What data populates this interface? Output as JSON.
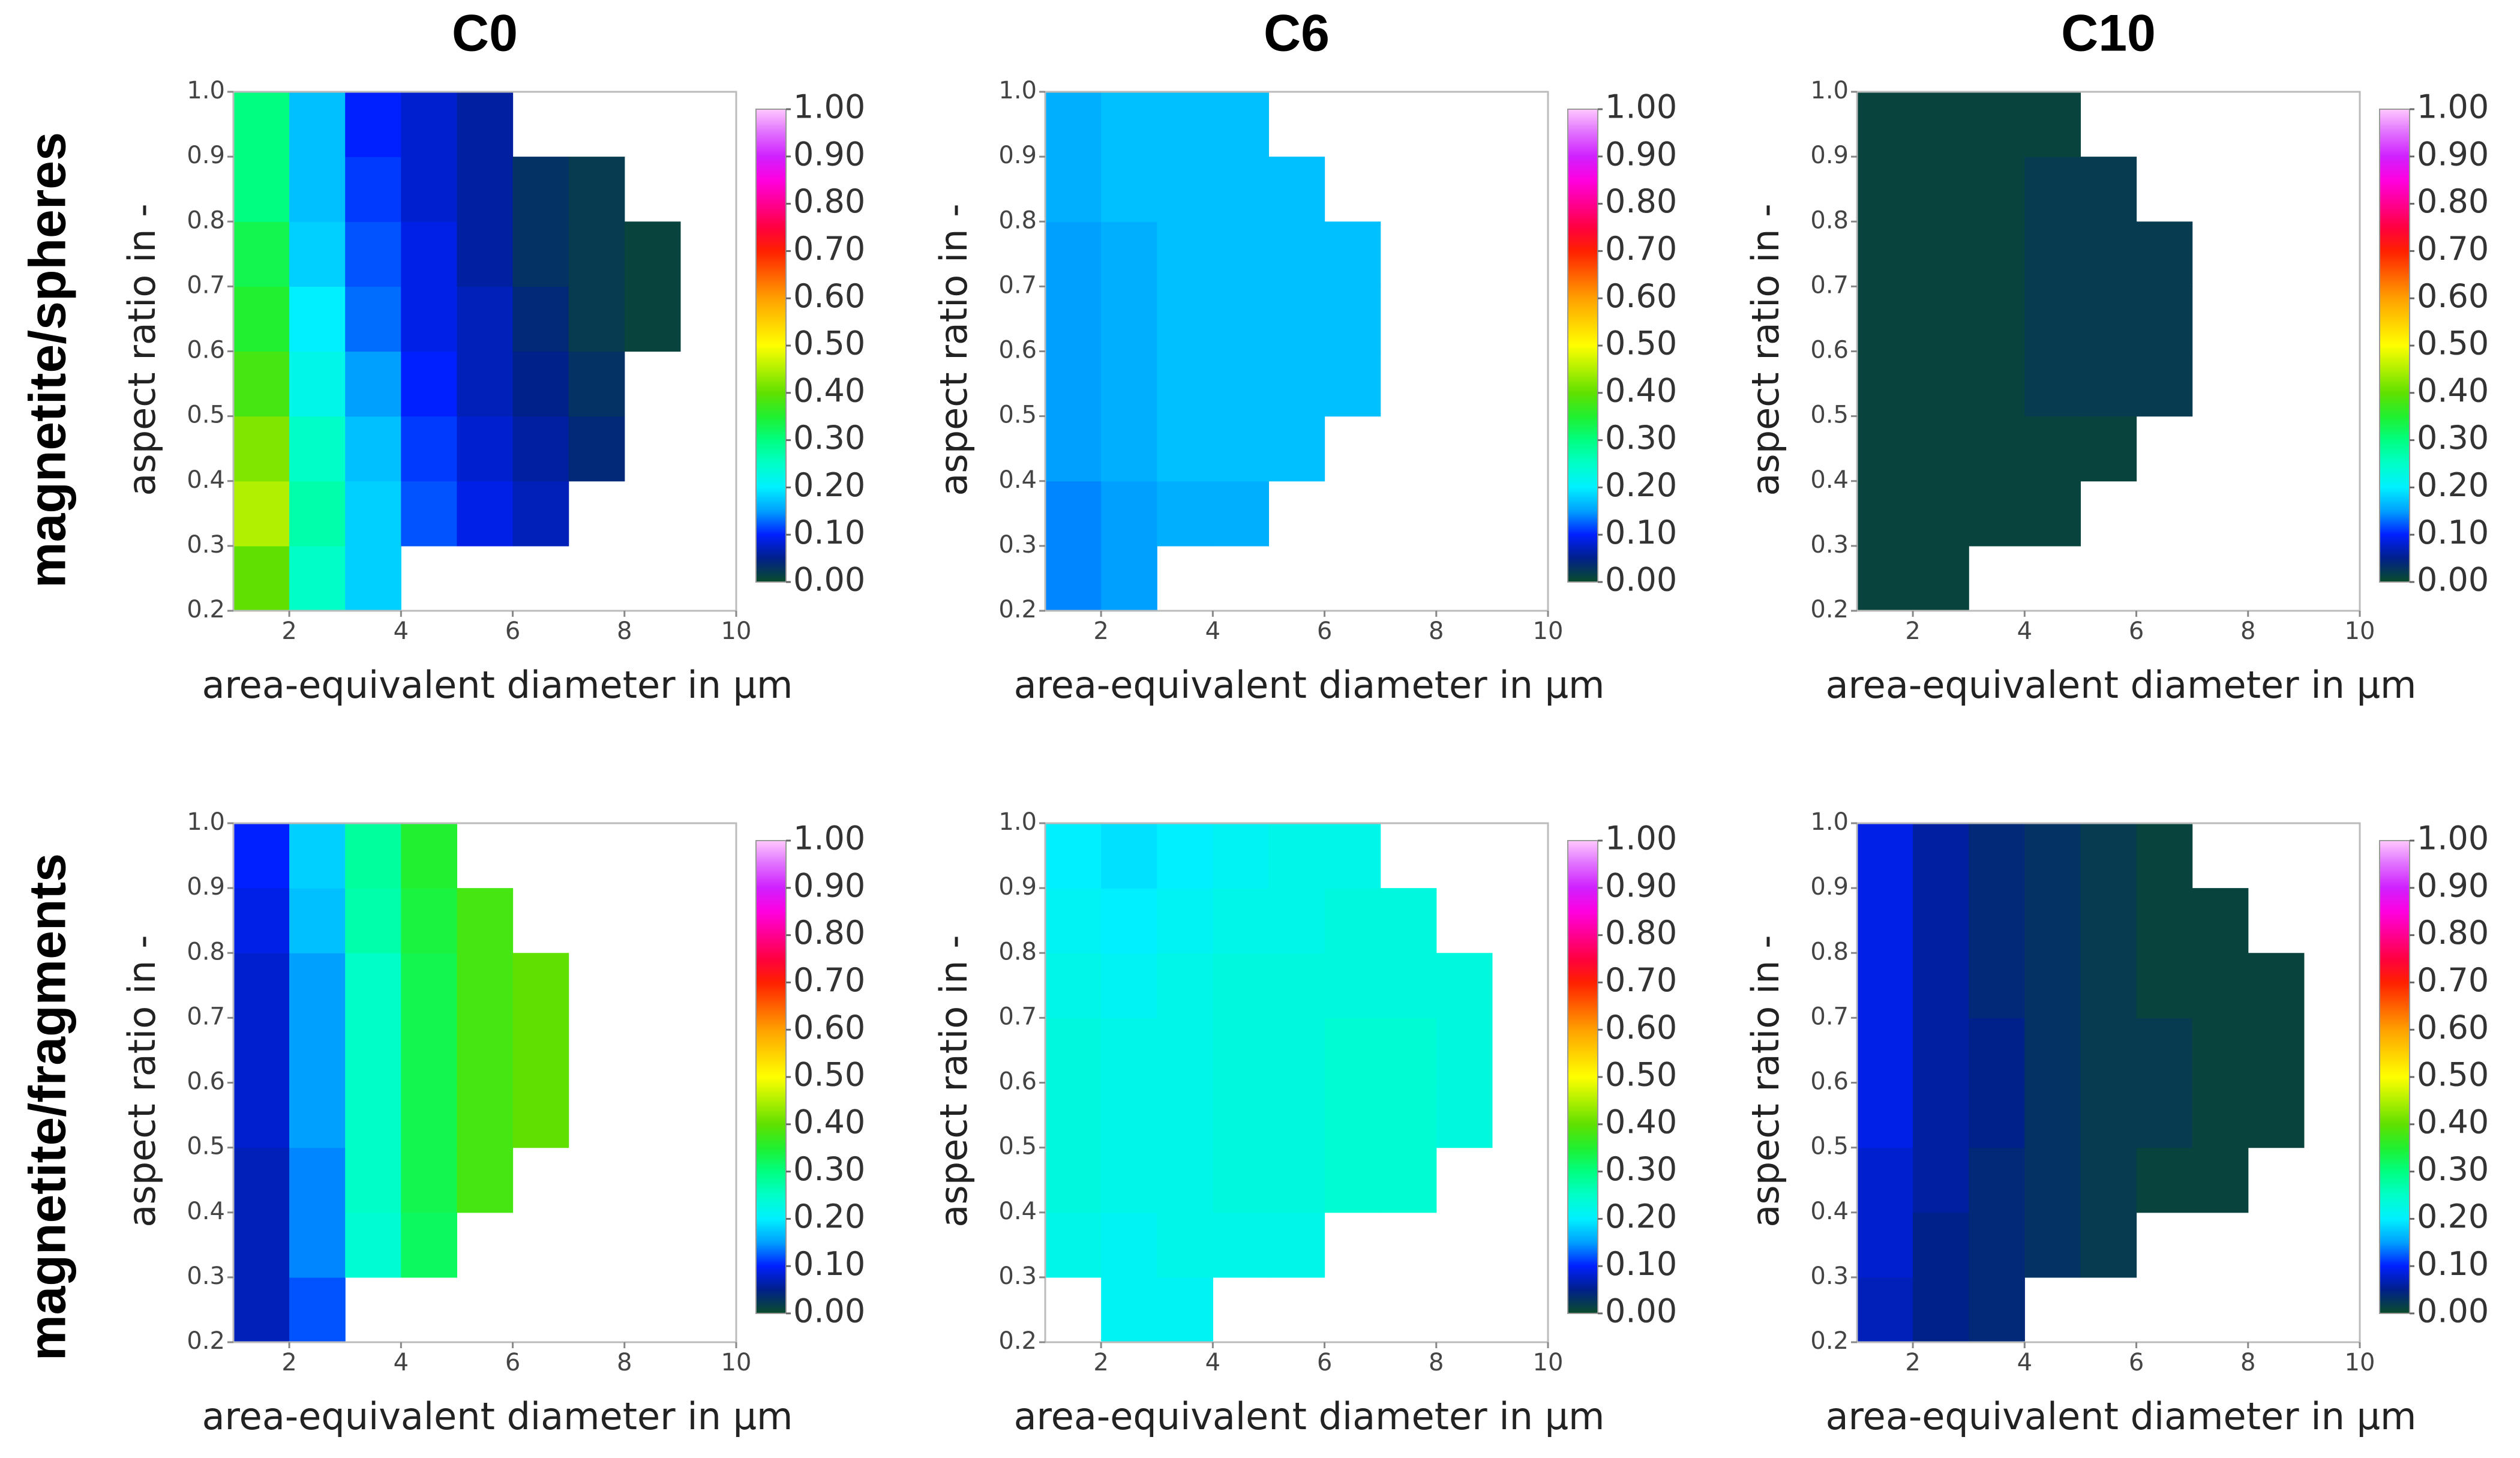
{
  "columns": [
    "C0",
    "C6",
    "C10"
  ],
  "rows": [
    "magnetite/spheres",
    "magnetite/fragments"
  ],
  "colormap": [
    "#0a4d2a",
    "#00208a",
    "#0020ff",
    "#00a0ff",
    "#00f0ff",
    "#00ffc8",
    "#00ff80",
    "#20f030",
    "#60e000",
    "#b0f000",
    "#ffff00",
    "#ffd000",
    "#ffa000",
    "#ff6000",
    "#ff2000",
    "#ff0040",
    "#ff0090",
    "#ff00e0",
    "#d020ff",
    "#e070ff",
    "#ffc8ff"
  ],
  "chart_data": [
    {
      "type": "heatmap",
      "x_label": "area-equivalent diameter in µm",
      "y_label": "aspect ratio in -",
      "x": [
        1.5,
        2.5,
        3.5,
        4.5,
        5.5,
        6.5,
        7.5,
        8.5,
        9.5
      ],
      "y": [
        0.25,
        0.35,
        0.45,
        0.55,
        0.65,
        0.75,
        0.85,
        0.95
      ],
      "z": [
        [
          0.4,
          0.25,
          0.18,
          null,
          null,
          null,
          null,
          null,
          null
        ],
        [
          0.45,
          0.27,
          0.18,
          0.12,
          0.09,
          0.07,
          null,
          null,
          null
        ],
        [
          0.42,
          0.25,
          0.17,
          0.11,
          0.08,
          0.06,
          0.04,
          null,
          null
        ],
        [
          0.38,
          0.22,
          0.15,
          0.1,
          0.07,
          0.05,
          0.03,
          null,
          null
        ],
        [
          0.35,
          0.2,
          0.13,
          0.09,
          0.07,
          0.04,
          0.02,
          0.01,
          null
        ],
        [
          0.33,
          0.18,
          0.12,
          0.09,
          0.06,
          0.03,
          0.02,
          0.01,
          null
        ],
        [
          0.3,
          0.17,
          0.11,
          0.08,
          0.06,
          0.03,
          0.02,
          null,
          null
        ],
        [
          0.3,
          0.17,
          0.1,
          0.08,
          0.06,
          null,
          null,
          null,
          null
        ]
      ],
      "xlim": [
        1,
        10
      ],
      "ylim": [
        0.2,
        1
      ],
      "xticks": [
        2,
        4,
        6,
        8,
        10
      ],
      "yticks": [
        0.2,
        0.3,
        0.4,
        0.5,
        0.6,
        0.7,
        0.8,
        0.9,
        {
          "value": 1,
          "label": "1.0"
        }
      ],
      "clim": [
        0,
        1
      ],
      "cticks": [
        {
          "value": 0,
          "label": "0.00"
        },
        {
          "value": 0.1,
          "label": "0.10"
        },
        {
          "value": 0.2,
          "label": "0.20"
        },
        {
          "value": 0.3,
          "label": "0.30"
        },
        {
          "value": 0.4,
          "label": "0.40"
        },
        {
          "value": 0.5,
          "label": "0.50"
        },
        {
          "value": 0.6,
          "label": "0.60"
        },
        {
          "value": 0.7,
          "label": "0.70"
        },
        {
          "value": 0.8,
          "label": "0.80"
        },
        {
          "value": 0.9,
          "label": "0.90"
        },
        {
          "value": 1,
          "label": "1.00"
        }
      ]
    },
    {
      "type": "heatmap",
      "x_label": "area-equivalent diameter in µm",
      "y_label": "aspect ratio in -",
      "x": [
        1.5,
        2.5,
        3.5,
        4.5,
        5.5,
        6.5,
        7.5,
        8.5,
        9.5
      ],
      "y": [
        0.25,
        0.35,
        0.45,
        0.55,
        0.65,
        0.75,
        0.85,
        0.95
      ],
      "z": [
        [
          0.14,
          0.15,
          null,
          null,
          null,
          null,
          null,
          null,
          null
        ],
        [
          0.14,
          0.15,
          0.16,
          0.16,
          null,
          null,
          null,
          null,
          null
        ],
        [
          0.15,
          0.16,
          0.17,
          0.17,
          0.17,
          null,
          null,
          null,
          null
        ],
        [
          0.15,
          0.16,
          0.17,
          0.17,
          0.17,
          0.17,
          null,
          null,
          null
        ],
        [
          0.15,
          0.16,
          0.17,
          0.17,
          0.17,
          0.17,
          null,
          null,
          null
        ],
        [
          0.15,
          0.16,
          0.17,
          0.17,
          0.17,
          0.17,
          null,
          null,
          null
        ],
        [
          0.16,
          0.17,
          0.17,
          0.17,
          0.17,
          null,
          null,
          null,
          null
        ],
        [
          0.16,
          0.17,
          0.17,
          0.17,
          null,
          null,
          null,
          null,
          null
        ]
      ],
      "xlim": [
        1,
        10
      ],
      "ylim": [
        0.2,
        1
      ],
      "xticks": [
        2,
        4,
        6,
        8,
        10
      ],
      "yticks": [
        0.2,
        0.3,
        0.4,
        0.5,
        0.6,
        0.7,
        0.8,
        0.9,
        {
          "value": 1,
          "label": "1.0"
        }
      ],
      "clim": [
        0,
        1
      ],
      "cticks": [
        {
          "value": 0,
          "label": "0.00"
        },
        {
          "value": 0.1,
          "label": "0.10"
        },
        {
          "value": 0.2,
          "label": "0.20"
        },
        {
          "value": 0.3,
          "label": "0.30"
        },
        {
          "value": 0.4,
          "label": "0.40"
        },
        {
          "value": 0.5,
          "label": "0.50"
        },
        {
          "value": 0.6,
          "label": "0.60"
        },
        {
          "value": 0.7,
          "label": "0.70"
        },
        {
          "value": 0.8,
          "label": "0.80"
        },
        {
          "value": 0.9,
          "label": "0.90"
        },
        {
          "value": 1,
          "label": "1.00"
        }
      ]
    },
    {
      "type": "heatmap",
      "x_label": "area-equivalent diameter in µm",
      "y_label": "aspect ratio in -",
      "x": [
        1.5,
        2.5,
        3.5,
        4.5,
        5.5,
        6.5,
        7.5,
        8.5,
        9.5
      ],
      "y": [
        0.25,
        0.35,
        0.45,
        0.55,
        0.65,
        0.75,
        0.85,
        0.95
      ],
      "z": [
        [
          0.01,
          0.01,
          null,
          null,
          null,
          null,
          null,
          null,
          null
        ],
        [
          0.01,
          0.01,
          0.01,
          0.01,
          null,
          null,
          null,
          null,
          null
        ],
        [
          0.01,
          0.01,
          0.01,
          0.01,
          0.01,
          null,
          null,
          null,
          null
        ],
        [
          0.01,
          0.01,
          0.01,
          0.02,
          0.02,
          0.02,
          null,
          null,
          null
        ],
        [
          0.01,
          0.01,
          0.01,
          0.02,
          0.02,
          0.02,
          null,
          null,
          null
        ],
        [
          0.01,
          0.01,
          0.01,
          0.02,
          0.02,
          0.02,
          null,
          null,
          null
        ],
        [
          0.01,
          0.01,
          0.01,
          0.02,
          0.02,
          null,
          null,
          null,
          null
        ],
        [
          0.01,
          0.01,
          0.01,
          0.01,
          null,
          null,
          null,
          null,
          null
        ]
      ],
      "xlim": [
        1,
        10
      ],
      "ylim": [
        0.2,
        1
      ],
      "xticks": [
        2,
        4,
        6,
        8,
        10
      ],
      "yticks": [
        0.2,
        0.3,
        0.4,
        0.5,
        0.6,
        0.7,
        0.8,
        0.9,
        {
          "value": 1,
          "label": "1.0"
        }
      ],
      "clim": [
        0,
        1
      ],
      "cticks": [
        {
          "value": 0,
          "label": "0.00"
        },
        {
          "value": 0.1,
          "label": "0.10"
        },
        {
          "value": 0.2,
          "label": "0.20"
        },
        {
          "value": 0.3,
          "label": "0.30"
        },
        {
          "value": 0.4,
          "label": "0.40"
        },
        {
          "value": 0.5,
          "label": "0.50"
        },
        {
          "value": 0.6,
          "label": "0.60"
        },
        {
          "value": 0.7,
          "label": "0.70"
        },
        {
          "value": 0.8,
          "label": "0.80"
        },
        {
          "value": 0.9,
          "label": "0.90"
        },
        {
          "value": 1,
          "label": "1.00"
        }
      ]
    },
    {
      "type": "heatmap",
      "x_label": "area-equivalent diameter in µm",
      "y_label": "aspect ratio in -",
      "x": [
        1.5,
        2.5,
        3.5,
        4.5,
        5.5,
        6.5,
        7.5,
        8.5,
        9.5
      ],
      "y": [
        0.25,
        0.35,
        0.45,
        0.55,
        0.65,
        0.75,
        0.85,
        0.95
      ],
      "z": [
        [
          0.07,
          0.12,
          null,
          null,
          null,
          null,
          null,
          null,
          null
        ],
        [
          0.07,
          0.14,
          0.24,
          0.32,
          null,
          null,
          null,
          null,
          null
        ],
        [
          0.07,
          0.14,
          0.25,
          0.33,
          0.38,
          null,
          null,
          null,
          null
        ],
        [
          0.08,
          0.15,
          0.25,
          0.33,
          0.38,
          0.4,
          null,
          null,
          null
        ],
        [
          0.08,
          0.15,
          0.25,
          0.33,
          0.38,
          0.4,
          null,
          null,
          null
        ],
        [
          0.08,
          0.15,
          0.25,
          0.33,
          0.38,
          0.4,
          null,
          null,
          null
        ],
        [
          0.09,
          0.17,
          0.27,
          0.34,
          0.38,
          null,
          null,
          null,
          null
        ],
        [
          0.1,
          0.18,
          0.28,
          0.35,
          null,
          null,
          null,
          null,
          null
        ]
      ],
      "xlim": [
        1,
        10
      ],
      "ylim": [
        0.2,
        1
      ],
      "xticks": [
        2,
        4,
        6,
        8,
        10
      ],
      "yticks": [
        0.2,
        0.3,
        0.4,
        0.5,
        0.6,
        0.7,
        0.8,
        0.9,
        {
          "value": 1,
          "label": "1.0"
        }
      ],
      "clim": [
        0,
        1
      ],
      "cticks": [
        {
          "value": 0,
          "label": "0.00"
        },
        {
          "value": 0.1,
          "label": "0.10"
        },
        {
          "value": 0.2,
          "label": "0.20"
        },
        {
          "value": 0.3,
          "label": "0.30"
        },
        {
          "value": 0.4,
          "label": "0.40"
        },
        {
          "value": 0.5,
          "label": "0.50"
        },
        {
          "value": 0.6,
          "label": "0.60"
        },
        {
          "value": 0.7,
          "label": "0.70"
        },
        {
          "value": 0.8,
          "label": "0.80"
        },
        {
          "value": 0.9,
          "label": "0.90"
        },
        {
          "value": 1,
          "label": "1.00"
        }
      ]
    },
    {
      "type": "heatmap",
      "x_label": "area-equivalent diameter in µm",
      "y_label": "aspect ratio in -",
      "x": [
        1.5,
        2.5,
        3.5,
        4.5,
        5.5,
        6.5,
        7.5,
        8.5,
        9.5
      ],
      "y": [
        0.25,
        0.35,
        0.45,
        0.55,
        0.65,
        0.75,
        0.85,
        0.95
      ],
      "z": [
        [
          null,
          0.21,
          0.21,
          null,
          null,
          null,
          null,
          null,
          null
        ],
        [
          0.22,
          0.21,
          0.22,
          0.22,
          0.22,
          null,
          null,
          null,
          null
        ],
        [
          0.23,
          0.22,
          0.22,
          0.23,
          0.23,
          0.24,
          0.24,
          null,
          null
        ],
        [
          0.23,
          0.22,
          0.22,
          0.23,
          0.23,
          0.24,
          0.24,
          0.23,
          null
        ],
        [
          0.23,
          0.22,
          0.22,
          0.23,
          0.23,
          0.24,
          0.24,
          0.23,
          null
        ],
        [
          0.22,
          0.21,
          0.22,
          0.23,
          0.23,
          0.23,
          0.23,
          0.23,
          null
        ],
        [
          0.21,
          0.2,
          0.21,
          0.22,
          0.22,
          0.23,
          0.23,
          null,
          null
        ],
        [
          0.2,
          0.19,
          0.2,
          0.21,
          0.22,
          0.22,
          null,
          null,
          null
        ]
      ],
      "xlim": [
        1,
        10
      ],
      "ylim": [
        0.2,
        1
      ],
      "xticks": [
        2,
        4,
        6,
        8,
        10
      ],
      "yticks": [
        0.2,
        0.3,
        0.4,
        0.5,
        0.6,
        0.7,
        0.8,
        0.9,
        {
          "value": 1,
          "label": "1.0"
        }
      ],
      "clim": [
        0,
        1
      ],
      "cticks": [
        {
          "value": 0,
          "label": "0.00"
        },
        {
          "value": 0.1,
          "label": "0.10"
        },
        {
          "value": 0.2,
          "label": "0.20"
        },
        {
          "value": 0.3,
          "label": "0.30"
        },
        {
          "value": 0.4,
          "label": "0.40"
        },
        {
          "value": 0.5,
          "label": "0.50"
        },
        {
          "value": 0.6,
          "label": "0.60"
        },
        {
          "value": 0.7,
          "label": "0.70"
        },
        {
          "value": 0.8,
          "label": "0.80"
        },
        {
          "value": 0.9,
          "label": "0.90"
        },
        {
          "value": 1,
          "label": "1.00"
        }
      ]
    },
    {
      "type": "heatmap",
      "x_label": "area-equivalent diameter in µm",
      "y_label": "aspect ratio in -",
      "x": [
        1.5,
        2.5,
        3.5,
        4.5,
        5.5,
        6.5,
        7.5,
        8.5,
        9.5
      ],
      "y": [
        0.25,
        0.35,
        0.45,
        0.55,
        0.65,
        0.75,
        0.85,
        0.95
      ],
      "z": [
        [
          0.07,
          0.05,
          0.04,
          null,
          null,
          null,
          null,
          null,
          null
        ],
        [
          0.08,
          0.05,
          0.04,
          0.03,
          0.02,
          null,
          null,
          null,
          null
        ],
        [
          0.08,
          0.06,
          0.04,
          0.03,
          0.02,
          0.01,
          0.01,
          null,
          null
        ],
        [
          0.09,
          0.06,
          0.05,
          0.03,
          0.02,
          0.02,
          0.01,
          0.01,
          null
        ],
        [
          0.09,
          0.06,
          0.05,
          0.03,
          0.02,
          0.02,
          0.01,
          0.01,
          null
        ],
        [
          0.09,
          0.06,
          0.04,
          0.03,
          0.02,
          0.01,
          0.01,
          0.01,
          null
        ],
        [
          0.09,
          0.06,
          0.04,
          0.03,
          0.02,
          0.01,
          0.01,
          null,
          null
        ],
        [
          0.09,
          0.06,
          0.04,
          0.03,
          0.02,
          0.01,
          null,
          null,
          null
        ]
      ],
      "xlim": [
        1,
        10
      ],
      "ylim": [
        0.2,
        1
      ],
      "xticks": [
        2,
        4,
        6,
        8,
        10
      ],
      "yticks": [
        0.2,
        0.3,
        0.4,
        0.5,
        0.6,
        0.7,
        0.8,
        0.9,
        {
          "value": 1,
          "label": "1.0"
        }
      ],
      "clim": [
        0,
        1
      ],
      "cticks": [
        {
          "value": 0,
          "label": "0.00"
        },
        {
          "value": 0.1,
          "label": "0.10"
        },
        {
          "value": 0.2,
          "label": "0.20"
        },
        {
          "value": 0.3,
          "label": "0.30"
        },
        {
          "value": 0.4,
          "label": "0.40"
        },
        {
          "value": 0.5,
          "label": "0.50"
        },
        {
          "value": 0.6,
          "label": "0.60"
        },
        {
          "value": 0.7,
          "label": "0.70"
        },
        {
          "value": 0.8,
          "label": "0.80"
        },
        {
          "value": 0.9,
          "label": "0.90"
        },
        {
          "value": 1,
          "label": "1.00"
        }
      ]
    }
  ]
}
